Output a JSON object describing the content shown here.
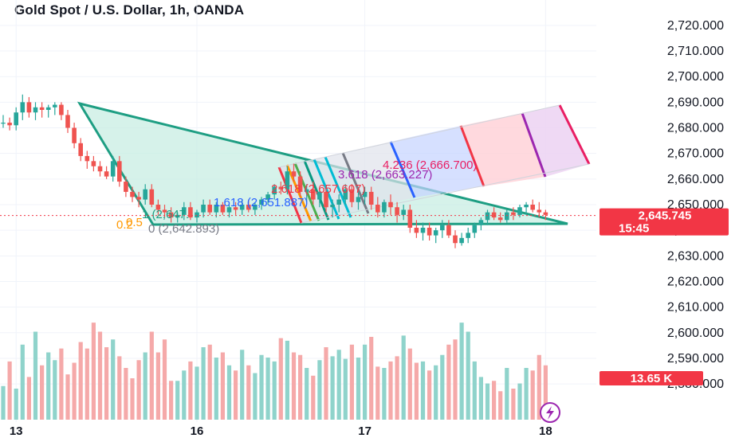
{
  "header": {
    "title": "Gold Spot / U.S. Dollar, 1h, OANDA"
  },
  "colors": {
    "up": "#26a69a",
    "down": "#ef5350",
    "vol_up": "#8fd3cb",
    "vol_down": "#f5a9a9",
    "badge": "#f23645",
    "triangle_stroke": "#1e9e83",
    "triangle_fill": "#c8ede3"
  },
  "chart_data": {
    "type": "candlestick",
    "symbol": "Gold Spot / U.S. Dollar",
    "interval": "1h",
    "source": "OANDA",
    "ylim": [
      2576,
      2724
    ],
    "y_ticks": [
      "2,720.000",
      "2,710.000",
      "2,700.000",
      "2,690.000",
      "2,680.000",
      "2,670.000",
      "2,660.000",
      "2,650.000",
      "2,640.000",
      "2,630.000",
      "2,620.000",
      "2,610.000",
      "2,600.000",
      "2,590.000",
      "2,580.000"
    ],
    "y_tick_values": [
      2720,
      2710,
      2700,
      2690,
      2680,
      2670,
      2660,
      2650,
      2640,
      2630,
      2620,
      2610,
      2600,
      2590,
      2580
    ],
    "x_ticks": [
      {
        "label": "13",
        "index": 2
      },
      {
        "label": "16",
        "index": 30
      },
      {
        "label": "17",
        "index": 56
      },
      {
        "label": "18",
        "index": 84
      }
    ],
    "candles": [
      [
        2682,
        2685,
        2680,
        2682
      ],
      [
        2682,
        2684,
        2679,
        2681
      ],
      [
        2681,
        2688,
        2679,
        2686
      ],
      [
        2686,
        2693,
        2683,
        2690
      ],
      [
        2690,
        2692,
        2684,
        2686
      ],
      [
        2686,
        2690,
        2683,
        2688
      ],
      [
        2688,
        2690,
        2684,
        2687
      ],
      [
        2687,
        2689,
        2684,
        2688
      ],
      [
        2688,
        2690,
        2685,
        2689
      ],
      [
        2689,
        2690,
        2683,
        2685
      ],
      [
        2685,
        2687,
        2678,
        2680
      ],
      [
        2680,
        2682,
        2672,
        2674
      ],
      [
        2674,
        2676,
        2667,
        2669
      ],
      [
        2669,
        2671,
        2664,
        2667
      ],
      [
        2667,
        2669,
        2663,
        2665
      ],
      [
        2665,
        2667,
        2661,
        2663
      ],
      [
        2663,
        2665,
        2660,
        2661
      ],
      [
        2661,
        2669,
        2659,
        2667
      ],
      [
        2667,
        2669,
        2657,
        2659
      ],
      [
        2659,
        2661,
        2653,
        2655
      ],
      [
        2655,
        2657,
        2651,
        2653
      ],
      [
        2653,
        2655,
        2649,
        2652
      ],
      [
        2652,
        2658,
        2650,
        2656
      ],
      [
        2656,
        2658,
        2649,
        2650
      ],
      [
        2650,
        2652,
        2646,
        2648
      ],
      [
        2648,
        2650,
        2645,
        2647
      ],
      [
        2647,
        2649,
        2643,
        2645
      ],
      [
        2645,
        2647,
        2643,
        2646
      ],
      [
        2646,
        2651,
        2644,
        2649
      ],
      [
        2649,
        2651,
        2644,
        2645
      ],
      [
        2645,
        2648,
        2643,
        2647
      ],
      [
        2647,
        2652,
        2645,
        2650
      ],
      [
        2650,
        2652,
        2646,
        2647
      ],
      [
        2647,
        2651,
        2645,
        2650
      ],
      [
        2650,
        2651,
        2646,
        2647
      ],
      [
        2647,
        2650,
        2645,
        2649
      ],
      [
        2649,
        2651,
        2646,
        2648
      ],
      [
        2648,
        2652,
        2646,
        2650
      ],
      [
        2650,
        2652,
        2647,
        2648
      ],
      [
        2648,
        2651,
        2646,
        2650
      ],
      [
        2650,
        2653,
        2648,
        2652
      ],
      [
        2652,
        2655,
        2650,
        2654
      ],
      [
        2654,
        2658,
        2652,
        2657
      ],
      [
        2657,
        2659,
        2654,
        2656
      ],
      [
        2656,
        2665,
        2654,
        2663
      ],
      [
        2663,
        2666,
        2659,
        2661
      ],
      [
        2661,
        2663,
        2653,
        2655
      ],
      [
        2655,
        2658,
        2651,
        2656
      ],
      [
        2656,
        2659,
        2650,
        2652
      ],
      [
        2652,
        2656,
        2649,
        2655
      ],
      [
        2655,
        2657,
        2647,
        2649
      ],
      [
        2649,
        2652,
        2645,
        2650
      ],
      [
        2650,
        2654,
        2647,
        2652
      ],
      [
        2652,
        2658,
        2650,
        2656
      ],
      [
        2656,
        2658,
        2649,
        2651
      ],
      [
        2651,
        2655,
        2648,
        2653
      ],
      [
        2653,
        2657,
        2650,
        2655
      ],
      [
        2655,
        2657,
        2648,
        2650
      ],
      [
        2650,
        2653,
        2645,
        2647
      ],
      [
        2647,
        2652,
        2645,
        2651
      ],
      [
        2651,
        2654,
        2646,
        2649
      ],
      [
        2649,
        2651,
        2643,
        2646
      ],
      [
        2646,
        2650,
        2644,
        2648
      ],
      [
        2648,
        2650,
        2639,
        2641
      ],
      [
        2641,
        2644,
        2637,
        2639
      ],
      [
        2639,
        2643,
        2636,
        2641
      ],
      [
        2641,
        2643,
        2636,
        2638
      ],
      [
        2638,
        2641,
        2635,
        2640
      ],
      [
        2640,
        2644,
        2637,
        2642
      ],
      [
        2642,
        2644,
        2637,
        2638
      ],
      [
        2638,
        2640,
        2633,
        2635
      ],
      [
        2635,
        2639,
        2634,
        2637
      ],
      [
        2637,
        2641,
        2635,
        2639
      ],
      [
        2639,
        2643,
        2637,
        2642
      ],
      [
        2642,
        2645,
        2640,
        2644
      ],
      [
        2644,
        2648,
        2642,
        2647
      ],
      [
        2647,
        2649,
        2644,
        2645
      ],
      [
        2645,
        2647,
        2643,
        2644
      ],
      [
        2644,
        2648,
        2643,
        2647
      ],
      [
        2647,
        2649,
        2644,
        2646
      ],
      [
        2646,
        2650,
        2645,
        2649
      ],
      [
        2649,
        2651,
        2646,
        2650
      ],
      [
        2650,
        2652,
        2647,
        2648
      ],
      [
        2648,
        2651,
        2645,
        2647
      ],
      [
        2647,
        2648,
        2644,
        2646
      ]
    ],
    "volume": [
      26,
      45,
      24,
      58,
      33,
      68,
      42,
      52,
      46,
      55,
      35,
      44,
      60,
      55,
      75,
      68,
      56,
      62,
      49,
      40,
      32,
      46,
      52,
      68,
      52,
      62,
      30,
      30,
      38,
      45,
      41,
      56,
      58,
      48,
      52,
      42,
      38,
      54,
      42,
      36,
      50,
      48,
      45,
      63,
      61,
      52,
      50,
      40,
      34,
      46,
      56,
      49,
      54,
      47,
      58,
      48,
      58,
      64,
      41,
      40,
      45,
      49,
      65,
      55,
      44,
      45,
      38,
      42,
      50,
      58,
      62,
      75,
      68,
      45,
      33,
      28,
      30,
      22,
      40,
      24,
      28,
      40,
      38,
      50,
      42
    ],
    "volume_scale_max": 80,
    "last_price_label": "2,645.745",
    "countdown_label": "15:45",
    "last_price_value": 2645.745,
    "volume_label": "13.65 K",
    "volume_label_value": 13.65,
    "fibonacci": {
      "levels": [
        {
          "label": "0 (2,642.893)",
          "value": 2642.893,
          "color": "#787b86"
        },
        {
          "label": "1 (2,647.)",
          "value": 2647.0,
          "color": "#787b86"
        },
        {
          "label": "1.618 (2,651.887)",
          "value": 2651.887,
          "color": "#2962ff"
        },
        {
          "label": "2.618 (2,657.607)",
          "value": 2657.607,
          "color": "#f23645"
        },
        {
          "label": "3.618 (2,663.227)",
          "value": 2663.227,
          "color": "#9c27b0"
        },
        {
          "label": "4.236 (2,666.700)",
          "value": 2666.7,
          "color": "#e91e63"
        }
      ]
    },
    "fib_label_0": "0 (2,642.893)",
    "fib_label_1": "1 (2,647.",
    "fib_label_1618": "1.618 (2,651.887)",
    "fib_label_2618": "2.618 (2,657.607)",
    "fib_label_3618": "3.618 (2,663.227)",
    "fib_label_4236": "4.236 (2,666.700)",
    "fib_label_left": "0.2",
    "fib_label_05": "0.5"
  }
}
